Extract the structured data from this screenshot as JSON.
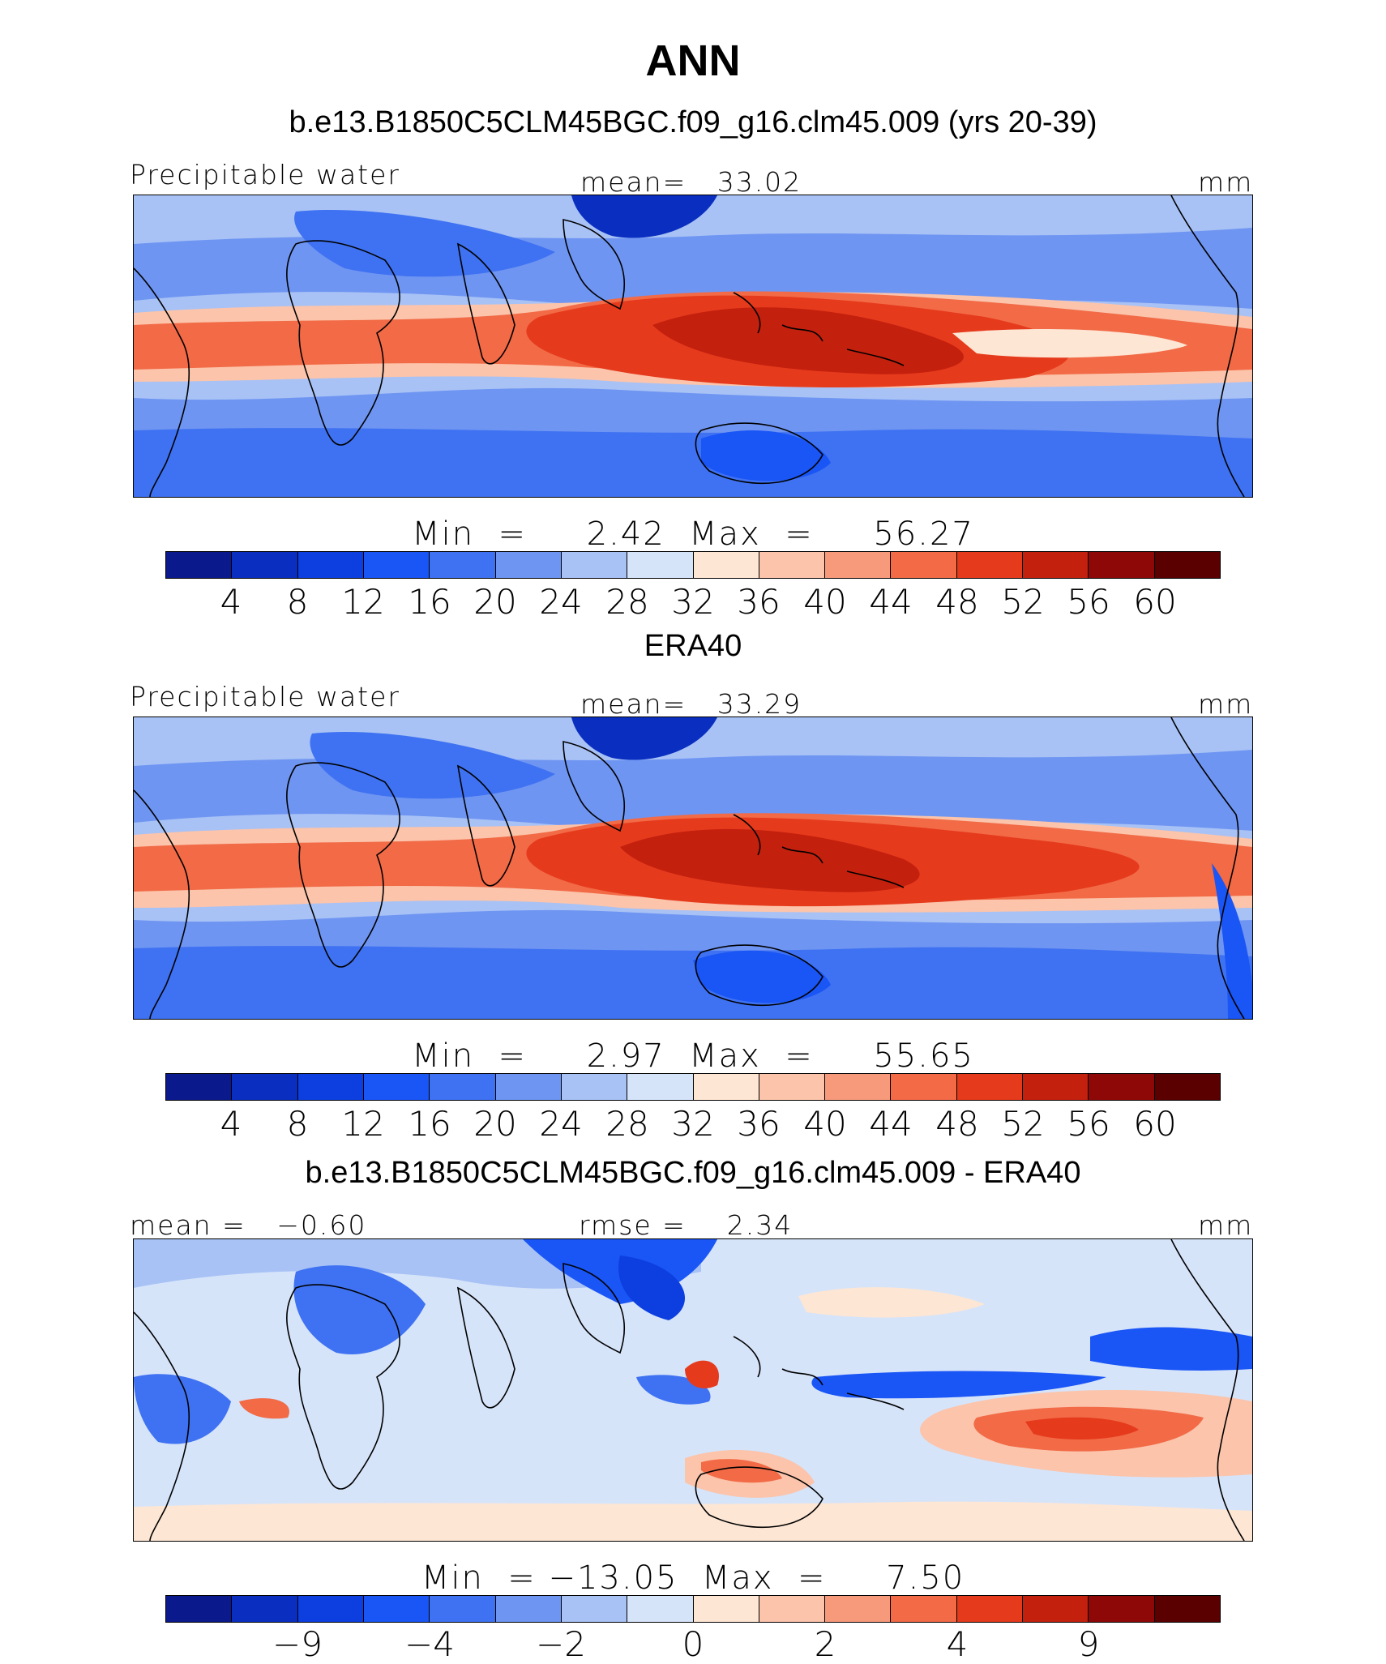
{
  "header": {
    "season": "ANN",
    "case_title": "b.e13.B1850C5CLM45BGC.f09_g16.clm45.009 (yrs 20-39)"
  },
  "panels": [
    {
      "id": "model",
      "left_label": "Precipitable water",
      "center_label": "mean=   33.02",
      "units": "mm",
      "minmax": "Min  =     2.42  Max  =     56.27",
      "colorbar_ticks": [
        "4",
        "8",
        "12",
        "16",
        "20",
        "24",
        "28",
        "32",
        "36",
        "40",
        "44",
        "48",
        "52",
        "56",
        "60"
      ]
    },
    {
      "id": "obs",
      "title": "ERA40",
      "left_label": "Precipitable water",
      "center_label": "mean=   33.29",
      "units": "mm",
      "minmax": "Min  =     2.97  Max  =     55.65",
      "colorbar_ticks": [
        "4",
        "8",
        "12",
        "16",
        "20",
        "24",
        "28",
        "32",
        "36",
        "40",
        "44",
        "48",
        "52",
        "56",
        "60"
      ]
    },
    {
      "id": "diff",
      "title": "b.e13.B1850C5CLM45BGC.f09_g16.clm45.009 - ERA40",
      "left_label": "mean =   −0.60",
      "center_label": "rmse =    2.34",
      "units": "mm",
      "minmax": "Min  = −13.05  Max  =     7.50",
      "colorbar_ticks": [
        "−9",
        "−4",
        "−2",
        "0",
        "2",
        "4",
        "9"
      ]
    }
  ],
  "colors": {
    "palette": [
      "#0a1a8c",
      "#0a2fc0",
      "#0d3fe0",
      "#1a55f5",
      "#3f72f2",
      "#6f95f2",
      "#a8c2f5",
      "#d6e4fa",
      "#fde6d4",
      "#fbc4ab",
      "#f79a7c",
      "#f26a46",
      "#e63a1c",
      "#c4200e",
      "#8f0808"
    ],
    "land_outline": "#000000"
  }
}
